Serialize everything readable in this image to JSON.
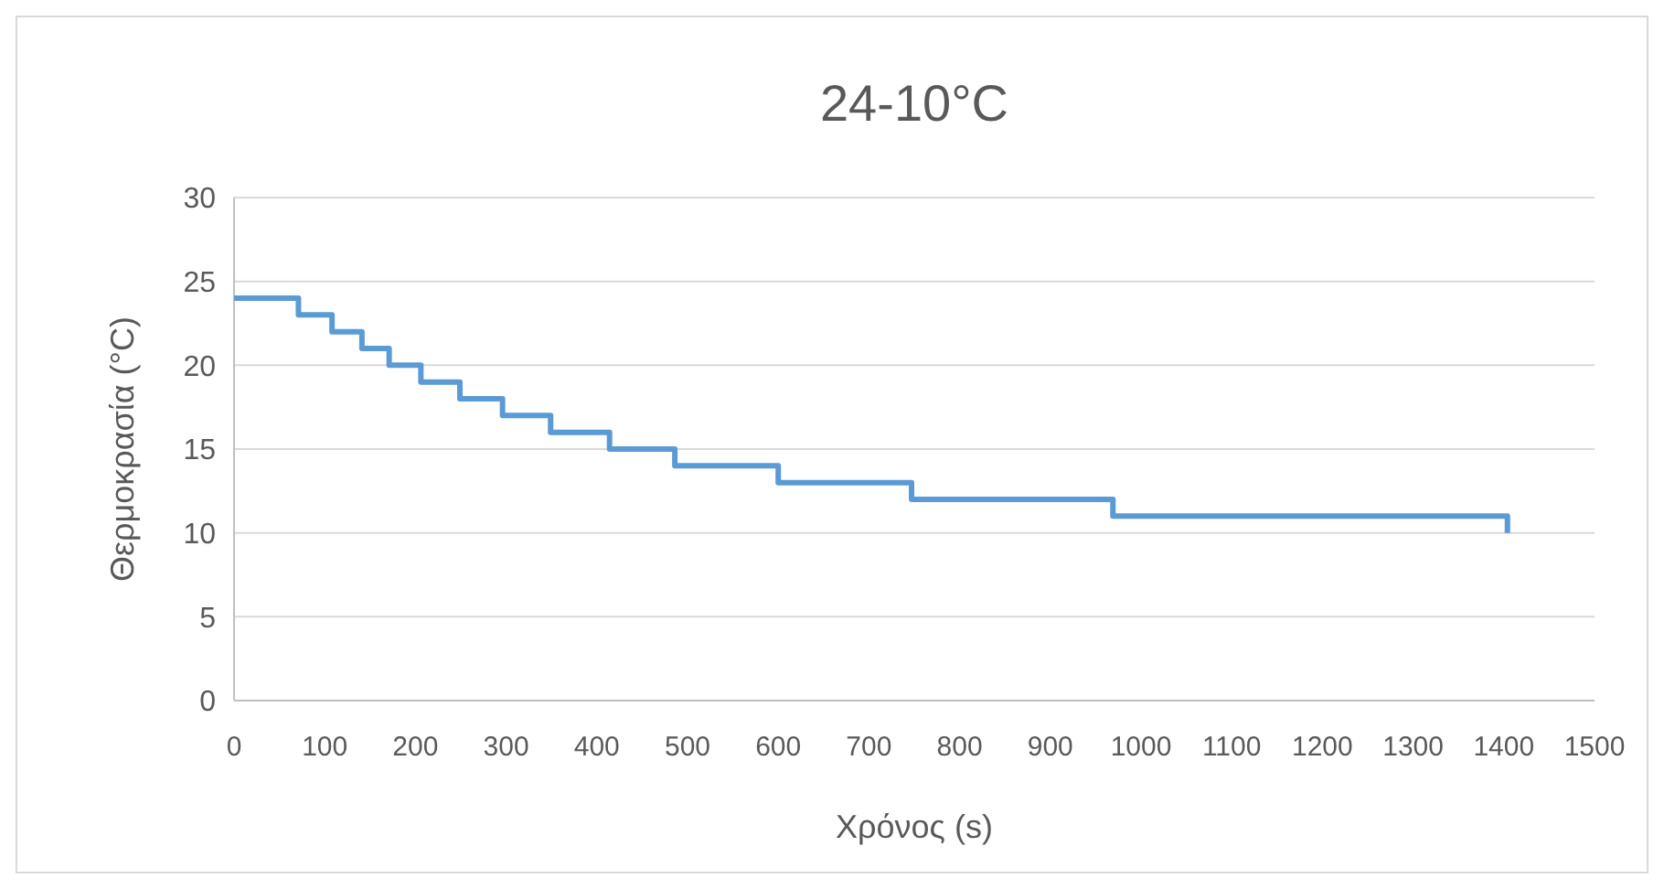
{
  "chart_data": {
    "type": "step",
    "title": "24-10°C",
    "xlabel": "Χρόνος (s)",
    "ylabel": "Θερμοκρασία (°C)",
    "x": [
      0,
      71,
      108,
      141,
      171,
      206,
      249,
      296,
      349,
      414,
      486,
      600,
      747,
      969,
      1404
    ],
    "series": [
      {
        "color": "#5b9bd5",
        "values": [
          24,
          23,
          22,
          21,
          20,
          19,
          18,
          17,
          16,
          15,
          14,
          13,
          12,
          11,
          10
        ]
      }
    ],
    "xlim": [
      0,
      1500
    ],
    "xticks": [
      0,
      100,
      200,
      300,
      400,
      500,
      600,
      700,
      800,
      900,
      1000,
      1100,
      1200,
      1300,
      1400,
      1500
    ],
    "ylim": [
      0,
      30
    ],
    "yticks": [
      0,
      5,
      10,
      15,
      20,
      25,
      30
    ],
    "grid": "y"
  }
}
